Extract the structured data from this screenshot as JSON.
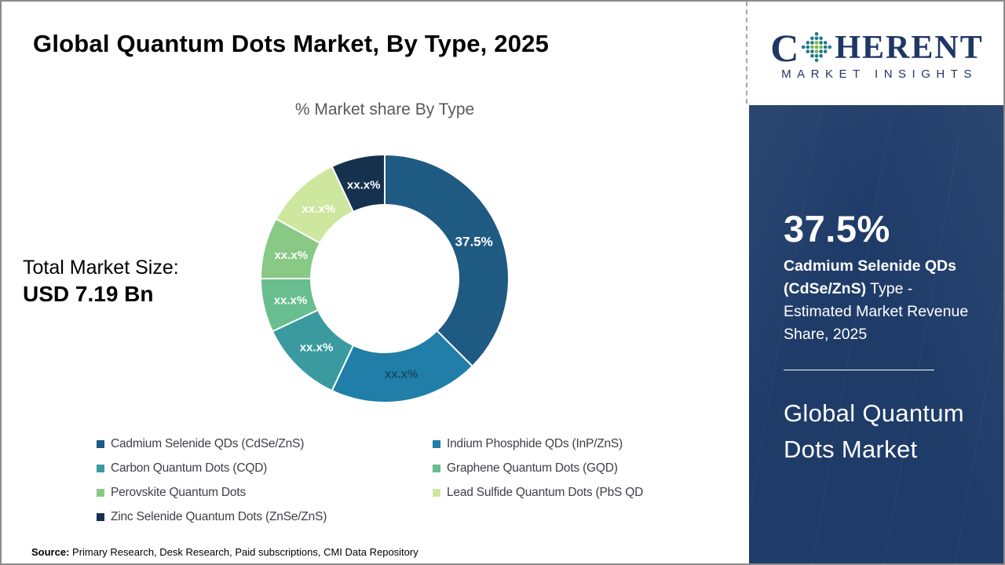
{
  "header": {
    "title": "Global Quantum Dots Market, By Type, 2025"
  },
  "market_size": {
    "label": "Total Market Size:",
    "value": "USD 7.19 Bn"
  },
  "source": {
    "label": "Source:",
    "text": " Primary Research, Desk Research, Paid subscriptions, CMI Data Repository"
  },
  "logo": {
    "part1": "C",
    "part2": "HERENT",
    "subtitle": "MARKET INSIGHTS",
    "text_color": "#1e3765",
    "globe_colors": [
      "#d4146a",
      "#1f7a8c",
      "#76b843"
    ]
  },
  "sidebar": {
    "background_color": "#1f3c69",
    "stat_value": "37.5%",
    "stat_bold": "Cadmium Selenide QDs (CdSe/ZnS)",
    "stat_rest": " Type - Estimated Market Revenue Share, 2025",
    "panel_title": "Global Quantum Dots Market"
  },
  "chart_data": {
    "type": "pie",
    "variant": "donut",
    "title": "% Market share By Type",
    "start_angle_deg": 0,
    "direction": "clockwise",
    "inner_radius_ratio": 0.59,
    "note": "Only the first slice value (37.5%) is printed; remaining slices are masked as xx.x% — values below are estimated from arc angles and sum to 100.",
    "series": [
      {
        "label": "Cadmium Selenide QDs (CdSe/ZnS)",
        "value": 37.5,
        "display": "37.5%",
        "color": "#1f5a83",
        "label_color": "#ffffff"
      },
      {
        "label": "Indium Phosphide QDs (InP/ZnS)",
        "value": 19.5,
        "display": "xx.x%",
        "color": "#207ea8",
        "label_color": "#1b4965"
      },
      {
        "label": "Carbon Quantum Dots (CQD)",
        "value": 11.0,
        "display": "xx.x%",
        "color": "#3a9aa0",
        "label_color": "#ffffff"
      },
      {
        "label": "Graphene Quantum Dots (GQD)",
        "value": 7.0,
        "display": "xx.x%",
        "color": "#68be8e",
        "label_color": "#ffffff"
      },
      {
        "label": "Perovskite Quantum Dots",
        "value": 8.0,
        "display": "xx.x%",
        "color": "#87c985",
        "label_color": "#ffffff"
      },
      {
        "label": "Lead Sulfide Quantum Dots (PbS QD",
        "value": 10.0,
        "display": "xx.x%",
        "color": "#cde79e",
        "label_color": "#ffffff"
      },
      {
        "label": "Zinc Selenide Quantum Dots (ZnSe/ZnS)",
        "value": 7.0,
        "display": "xx.x%",
        "color": "#16314e",
        "label_color": "#ffffff"
      }
    ],
    "legend_position": "bottom",
    "legend_columns": 2
  }
}
